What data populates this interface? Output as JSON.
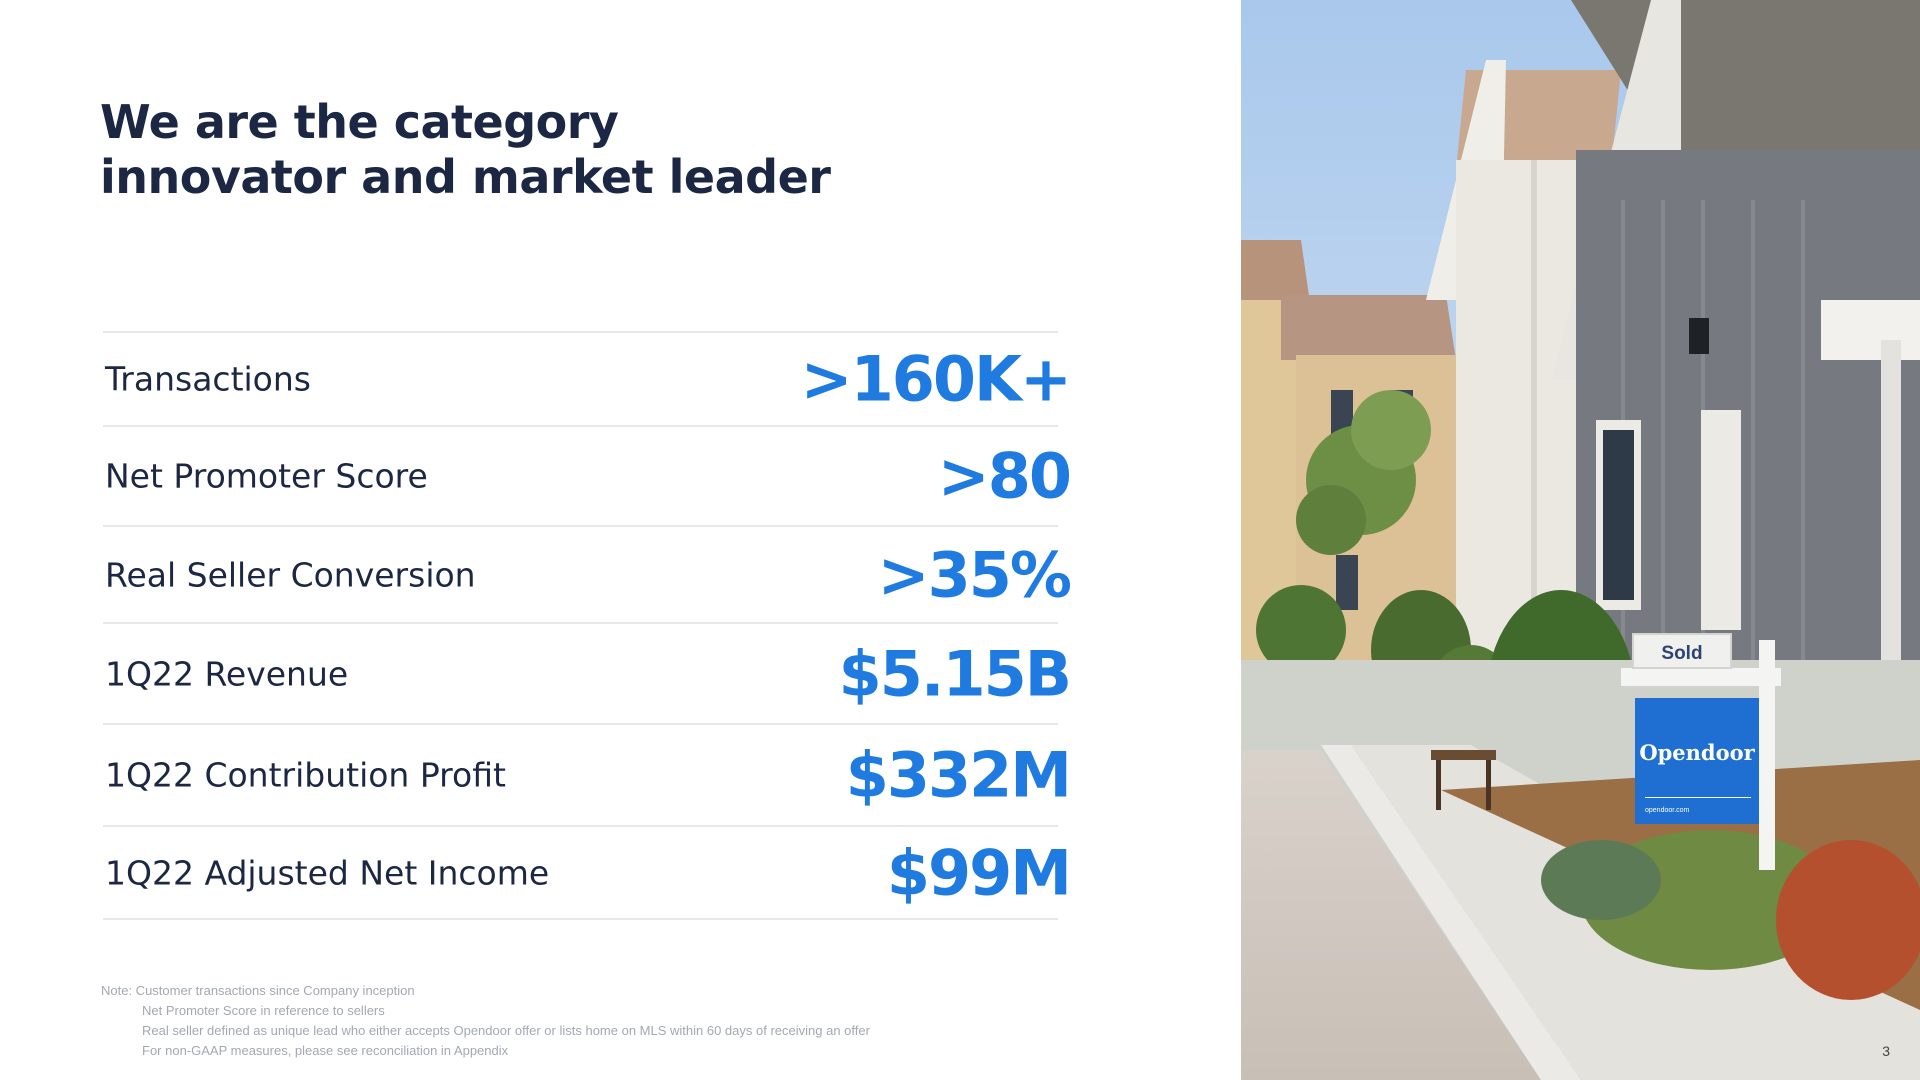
{
  "title": {
    "line1": "We are the category",
    "line2": "innovator and market leader"
  },
  "metrics": [
    {
      "label": "Transactions",
      "value": ">160K+"
    },
    {
      "label": "Net Promoter Score",
      "value": ">80"
    },
    {
      "label": "Real Seller Conversion",
      "value": ">35%"
    },
    {
      "label": "1Q22 Revenue",
      "value": "$5.15B"
    },
    {
      "label": "1Q22 Contribution Profit",
      "value": "$332M"
    },
    {
      "label": "1Q22 Adjusted Net Income",
      "value": "$99M"
    }
  ],
  "notes": {
    "line1": "Note: Customer transactions since Company inception",
    "line2": "Net Promoter Score in reference to sellers",
    "line3": "Real seller defined as unique lead who either accepts Opendoor offer or lists home on MLS within 60 days of receiving an offer",
    "line4": "For non-GAAP measures, please see reconciliation in Appendix"
  },
  "photo": {
    "sign_top": "Sold",
    "sign_brand": "Opendoor",
    "sign_url": "opendoor.com"
  },
  "page_number": "3",
  "colors": {
    "title": "#1c2743",
    "accent": "#1f7be0",
    "divider": "#e6e8ec",
    "note": "#a3a8b2"
  }
}
